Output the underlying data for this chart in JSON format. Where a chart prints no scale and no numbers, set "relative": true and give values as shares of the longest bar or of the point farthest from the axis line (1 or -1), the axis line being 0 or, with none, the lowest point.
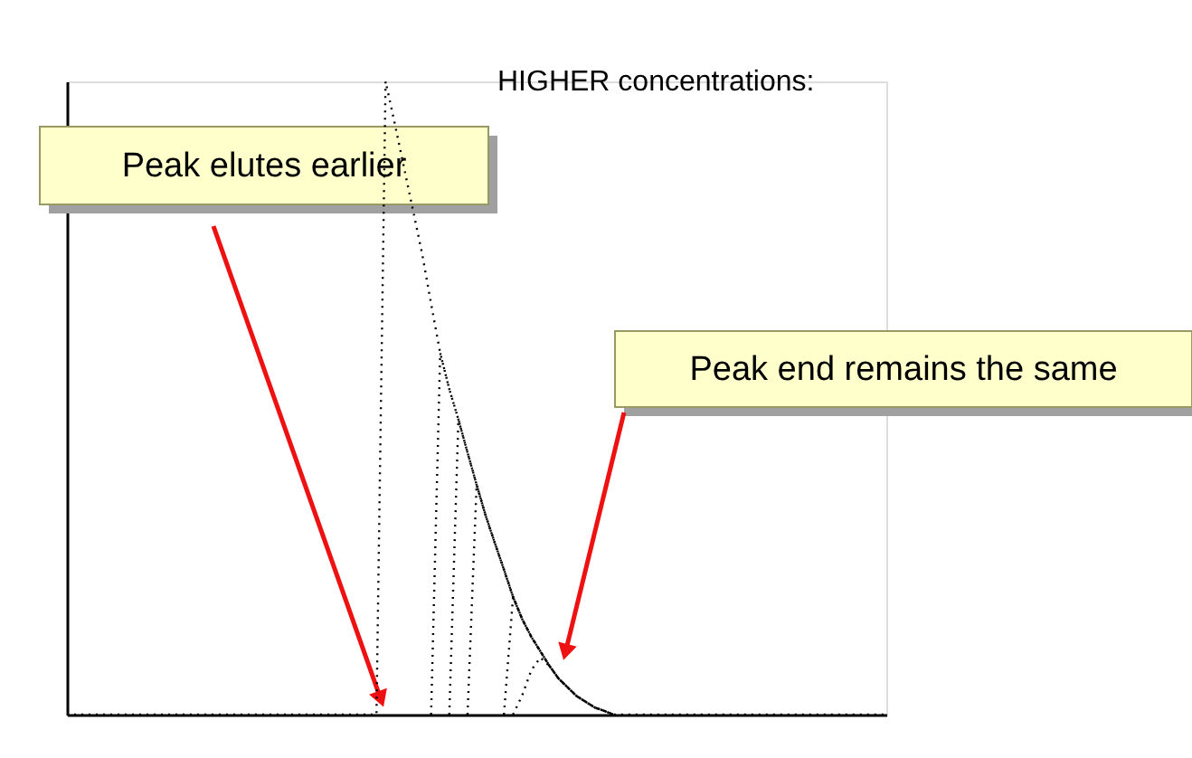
{
  "chart_data": {
    "type": "line",
    "title": "HIGHER concentrations:",
    "relative": true,
    "grid": false,
    "legend": false,
    "line_style": "dotted",
    "marker": "none",
    "categories": [
      null,
      null,
      null,
      null,
      null,
      null,
      null,
      null,
      null,
      null,
      null,
      null,
      null,
      null,
      null,
      null,
      null,
      null,
      null,
      null,
      null,
      null,
      null,
      null,
      null,
      null,
      null,
      null,
      null,
      null,
      null,
      null,
      null,
      null,
      null,
      null,
      null,
      null,
      null,
      null,
      null,
      null,
      null,
      null,
      null,
      null,
      null,
      null,
      null,
      null,
      null,
      null,
      null,
      null,
      null,
      null,
      null,
      null,
      null,
      null,
      null,
      null,
      null,
      null,
      null,
      null,
      null,
      null,
      null,
      null,
      null,
      null,
      null,
      null,
      null,
      null,
      null,
      null,
      null,
      null,
      null,
      null,
      null,
      null,
      null,
      null,
      null,
      null,
      null,
      null,
      null
    ],
    "series": [
      {
        "color": "#000000",
        "values": [
          0,
          0,
          0,
          0,
          0,
          0,
          0,
          0,
          0,
          0,
          0,
          0,
          0,
          0,
          0,
          0,
          0,
          0,
          0,
          0,
          0,
          0,
          0,
          0,
          0,
          0,
          0,
          0,
          0,
          0,
          0,
          0,
          0,
          0,
          0,
          1.0,
          0.934,
          null,
          null,
          0.729,
          0.649,
          0.571,
          0.514,
          0.466,
          0.414,
          0.363,
          0.314,
          0.271,
          0.229,
          0.186,
          0.151,
          0.123,
          0.1,
          0.077,
          0.057,
          0.043,
          0.029,
          0.02,
          0.011,
          0.006,
          0,
          0,
          0,
          0,
          0,
          0,
          0,
          0,
          0,
          0,
          0,
          0,
          0,
          0,
          0,
          0,
          0,
          0,
          0,
          0,
          0,
          0,
          0,
          0,
          0,
          0,
          0,
          0,
          0,
          0,
          0
        ]
      },
      {
        "color": "#000000",
        "values": [
          null,
          null,
          null,
          null,
          null,
          null,
          null,
          null,
          null,
          null,
          null,
          null,
          null,
          null,
          null,
          null,
          null,
          null,
          null,
          null,
          null,
          null,
          null,
          null,
          null,
          null,
          null,
          null,
          null,
          null,
          null,
          null,
          null,
          null,
          null,
          null,
          null,
          null,
          null,
          null,
          0,
          0.571,
          0.514,
          0.466,
          0.414,
          0.363,
          0.314,
          0.271,
          0.229,
          0.186,
          0.151,
          0.123,
          0.1,
          0.077,
          0.057,
          0.043,
          0.029,
          0.02,
          0.011,
          0.006,
          0,
          null,
          null,
          null,
          null,
          null,
          null,
          null,
          null,
          null,
          null,
          null,
          null,
          null,
          null,
          null,
          null,
          null,
          null,
          null,
          null,
          null,
          null,
          null,
          null,
          null,
          null,
          null,
          null,
          null,
          null
        ]
      },
      {
        "color": "#000000",
        "values": [
          null,
          null,
          null,
          null,
          null,
          null,
          null,
          null,
          null,
          null,
          null,
          null,
          null,
          null,
          null,
          null,
          null,
          null,
          null,
          null,
          null,
          null,
          null,
          null,
          null,
          null,
          null,
          null,
          null,
          null,
          null,
          null,
          null,
          null,
          null,
          null,
          null,
          null,
          null,
          null,
          null,
          null,
          0,
          0.466,
          0.414,
          0.363,
          0.314,
          0.271,
          0.229,
          0.186,
          0.151,
          0.123,
          0.1,
          0.077,
          0.057,
          0.043,
          0.029,
          0.02,
          0.011,
          0.006,
          0,
          null,
          null,
          null,
          null,
          null,
          null,
          null,
          null,
          null,
          null,
          null,
          null,
          null,
          null,
          null,
          null,
          null,
          null,
          null,
          null,
          null,
          null,
          null,
          null,
          null,
          null,
          null,
          null,
          null,
          null
        ]
      },
      {
        "color": "#000000",
        "values": [
          null,
          null,
          null,
          null,
          null,
          null,
          null,
          null,
          null,
          null,
          null,
          null,
          null,
          null,
          null,
          null,
          null,
          null,
          null,
          null,
          null,
          null,
          null,
          null,
          null,
          null,
          null,
          null,
          null,
          null,
          null,
          null,
          null,
          null,
          null,
          null,
          null,
          null,
          null,
          null,
          null,
          null,
          null,
          null,
          0,
          0.363,
          0.314,
          0.271,
          0.229,
          0.186,
          0.151,
          0.123,
          0.1,
          0.077,
          0.057,
          0.043,
          0.029,
          0.02,
          0.011,
          0.006,
          0,
          null,
          null,
          null,
          null,
          null,
          null,
          null,
          null,
          null,
          null,
          null,
          null,
          null,
          null,
          null,
          null,
          null,
          null,
          null,
          null,
          null,
          null,
          null,
          null,
          null,
          null,
          null,
          null,
          null,
          null
        ]
      },
      {
        "color": "#000000",
        "values": [
          null,
          null,
          null,
          null,
          null,
          null,
          null,
          null,
          null,
          null,
          null,
          null,
          null,
          null,
          null,
          null,
          null,
          null,
          null,
          null,
          null,
          null,
          null,
          null,
          null,
          null,
          null,
          null,
          null,
          null,
          null,
          null,
          null,
          null,
          null,
          null,
          null,
          null,
          null,
          null,
          null,
          null,
          null,
          null,
          null,
          null,
          null,
          null,
          0,
          0.186,
          0.151,
          0.123,
          0.1,
          0.077,
          0.057,
          0.043,
          0.029,
          0.02,
          0.011,
          0.006,
          0,
          null,
          null,
          null,
          null,
          null,
          null,
          null,
          null,
          null,
          null,
          null,
          null,
          null,
          null,
          null,
          null,
          null,
          null,
          null,
          null,
          null,
          null,
          null,
          null,
          null,
          null,
          null,
          null,
          null,
          null
        ]
      },
      {
        "color": "#000000",
        "values": [
          null,
          null,
          null,
          null,
          null,
          null,
          null,
          null,
          null,
          null,
          null,
          null,
          null,
          null,
          null,
          null,
          null,
          null,
          null,
          null,
          null,
          null,
          null,
          null,
          null,
          null,
          null,
          null,
          null,
          null,
          null,
          null,
          null,
          null,
          null,
          null,
          null,
          null,
          null,
          null,
          null,
          null,
          null,
          null,
          null,
          null,
          null,
          null,
          null,
          0,
          0.03,
          0.07,
          0.09,
          0.077,
          0.057,
          0.043,
          0.029,
          0.02,
          0.011,
          0.006,
          0,
          null,
          null,
          null,
          null,
          null,
          null,
          null,
          null,
          null,
          null,
          null,
          null,
          null,
          null,
          null,
          null,
          null,
          null,
          null,
          null,
          null,
          null,
          null,
          null,
          null,
          null,
          null,
          null,
          null,
          null
        ]
      }
    ],
    "annotations": [
      "Peak elutes earlier",
      "Peak end remains the same"
    ]
  }
}
